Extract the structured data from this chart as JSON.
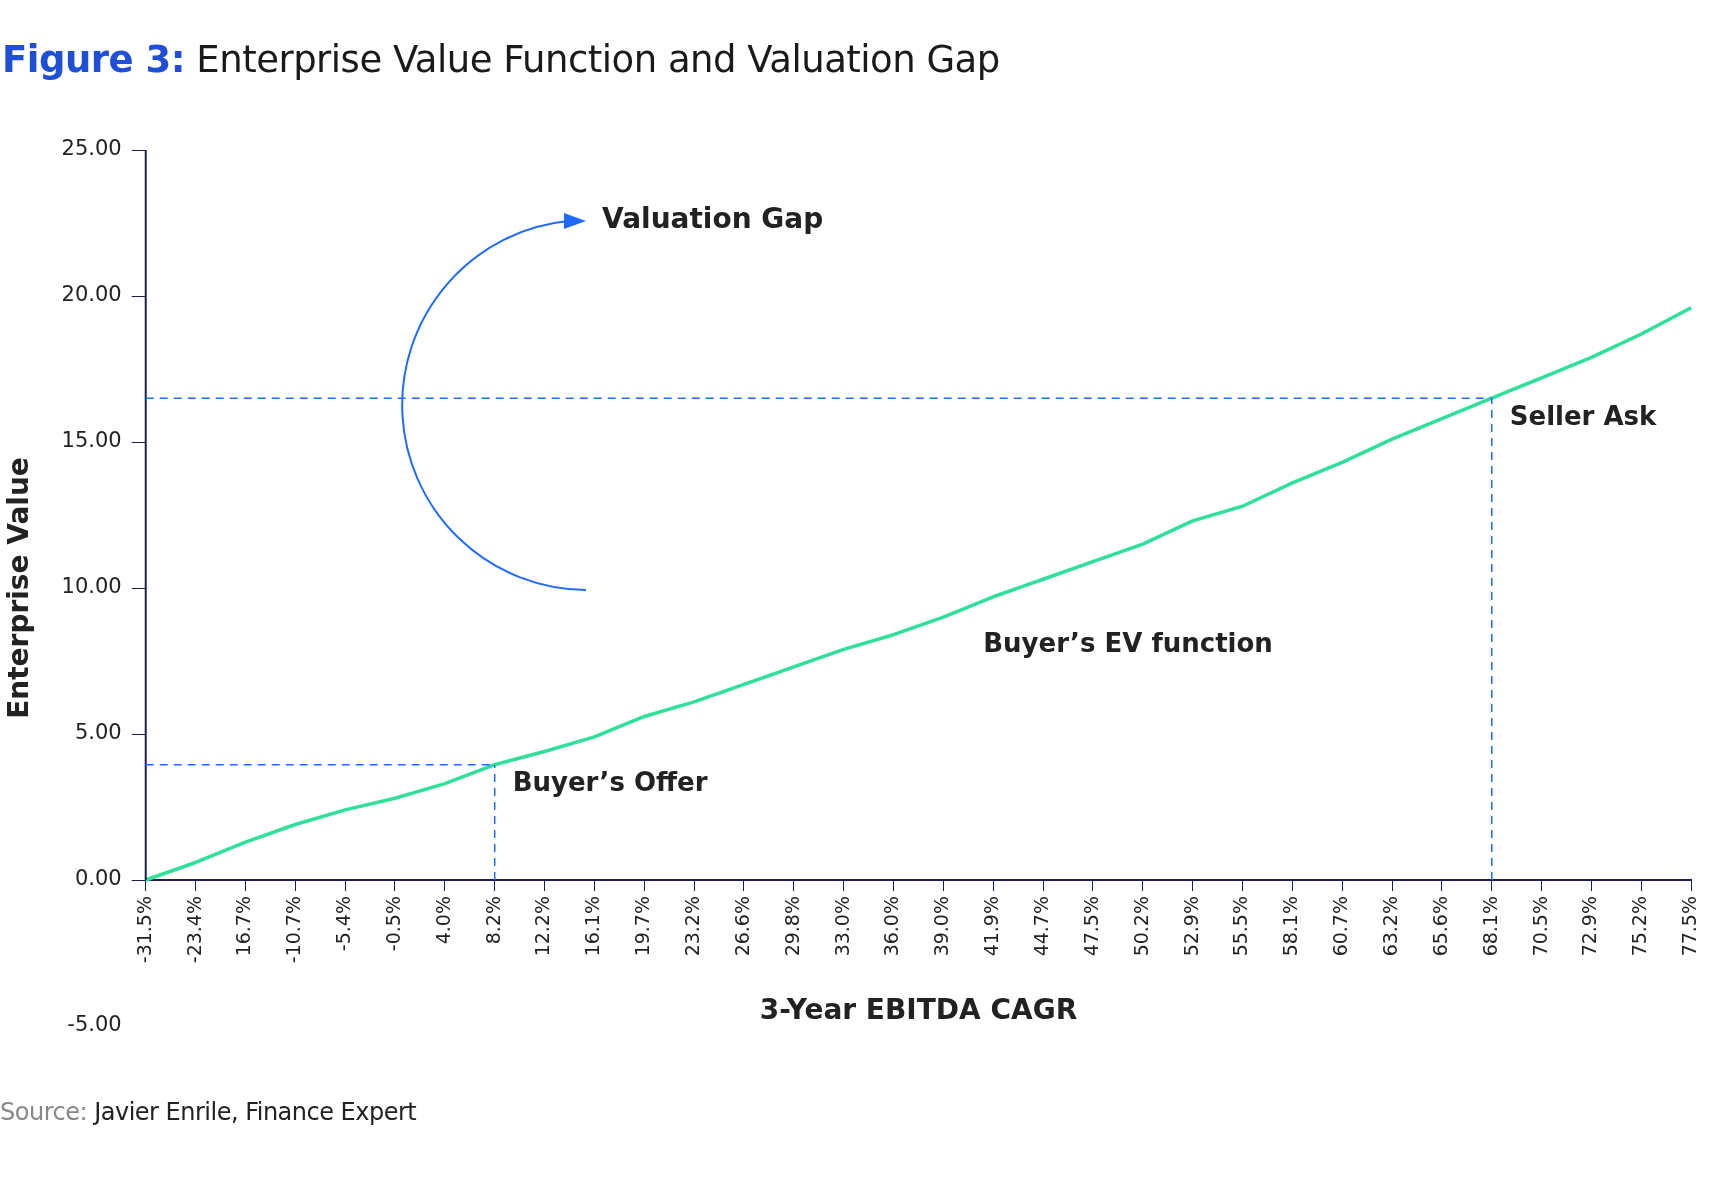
{
  "chart_data": {
    "type": "line",
    "title": "Figure 3: Enterprise Value Function and Valuation Gap",
    "xlabel": "3-Year EBITDA CAGR",
    "ylabel": "Enterprise Value",
    "categories": [
      "-31.5%",
      "-23.4%",
      "16.7%",
      "-10.7%",
      "-5.4%",
      "-0.5%",
      "4.0%",
      "8.2%",
      "12.2%",
      "16.1%",
      "19.7%",
      "23.2%",
      "26.6%",
      "29.8%",
      "33.0%",
      "36.0%",
      "39.0%",
      "41.9%",
      "44.7%",
      "47.5%",
      "50.2%",
      "52.9%",
      "55.5%",
      "58.1%",
      "60.7%",
      "63.2%",
      "65.6%",
      "68.1%",
      "70.5%",
      "72.9%",
      "75.2%",
      "77.5%"
    ],
    "series": [
      {
        "name": "Buyer’s EV function",
        "color": "#2ee09a",
        "values": [
          0,
          0.6,
          1.3,
          1.9,
          2.4,
          2.8,
          3.3,
          3.95,
          4.4,
          4.9,
          5.6,
          6.1,
          6.7,
          7.3,
          7.9,
          8.4,
          9.0,
          9.7,
          10.3,
          10.9,
          11.5,
          12.3,
          12.8,
          13.6,
          14.3,
          15.1,
          15.8,
          16.5,
          17.2,
          17.9,
          18.7,
          19.6
        ]
      }
    ],
    "ylim": [
      -5,
      25
    ],
    "yticks": [
      {
        "value": -5,
        "label": "-5.00"
      },
      {
        "value": 0,
        "label": "0.00"
      },
      {
        "value": 5,
        "label": "5.00"
      },
      {
        "value": 10,
        "label": "10.00"
      },
      {
        "value": 15,
        "label": "15.00"
      },
      {
        "value": 20,
        "label": "20.00"
      },
      {
        "value": 25,
        "label": "25.00"
      }
    ],
    "grid": false,
    "legend": false,
    "marker": "none",
    "line_style": "solid",
    "ref_lines": [
      {
        "axis": "y",
        "value": 3.95,
        "color": "#1f6bff",
        "line_style": "dashed"
      },
      {
        "axis": "x",
        "value": "8.2%",
        "color": "#1f6bff",
        "line_style": "dashed"
      },
      {
        "axis": "y",
        "value": 16.5,
        "color": "#1f6bff",
        "line_style": "dashed"
      },
      {
        "axis": "x",
        "value": "68.1%",
        "color": "#1f6bff",
        "line_style": "dashed"
      }
    ],
    "annotations": [
      "Valuation Gap",
      {
        "text": "Buyer’s Offer",
        "x": "8.2%",
        "y": 3.95
      },
      {
        "text": "Seller Ask",
        "x": "68.1%",
        "y": 16.5
      },
      "Source: Javier Enrile, Finance Expert"
    ]
  }
}
